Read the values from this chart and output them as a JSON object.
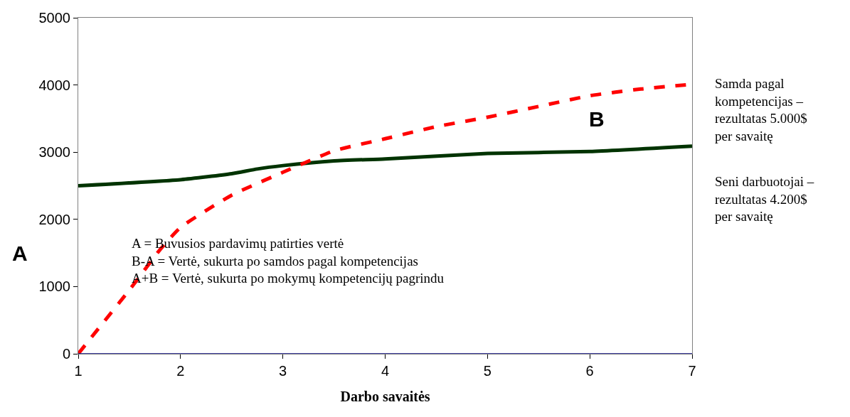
{
  "chart_data": {
    "type": "line",
    "xlabel": "Darbo savaitės",
    "xlim": [
      1,
      7
    ],
    "xticks": [
      1,
      2,
      3,
      4,
      5,
      6,
      7
    ],
    "ylim": [
      0,
      5000
    ],
    "yticks": [
      0,
      1000,
      2000,
      3000,
      4000,
      5000
    ],
    "series": [
      {
        "color": "#003300",
        "line_style": "solid",
        "x": [
          1,
          2,
          2.5,
          2.75,
          3,
          3.5,
          4,
          5,
          6,
          7
        ],
        "values": [
          2500,
          2590,
          2680,
          2750,
          2800,
          2870,
          2900,
          2980,
          3010,
          3090
        ]
      },
      {
        "color": "#ff0000",
        "line_style": "dashed",
        "x": [
          1,
          1.2,
          1.5,
          1.8,
          2,
          2.5,
          3,
          3.5,
          4,
          4.5,
          5,
          5.5,
          6,
          6.5,
          7
        ],
        "values": [
          0,
          380,
          950,
          1550,
          1880,
          2360,
          2700,
          3020,
          3200,
          3380,
          3520,
          3680,
          3840,
          3940,
          4010
        ]
      }
    ],
    "annotations": [
      "A",
      "B",
      "A = Buvusios pardavimų patirties vertė\nB-A = Vertė, sukurta po samdos pagal kompetencijas\nA+B = Vertė, sukurta po mokymų kompetencijų pagrindu",
      "Samda pagal\nkompetencijas –\nrezultatas 5.000$\nper savaitę",
      "Seni darbuotojai –\nrezultatas 4.200$\nper savaitę"
    ]
  }
}
